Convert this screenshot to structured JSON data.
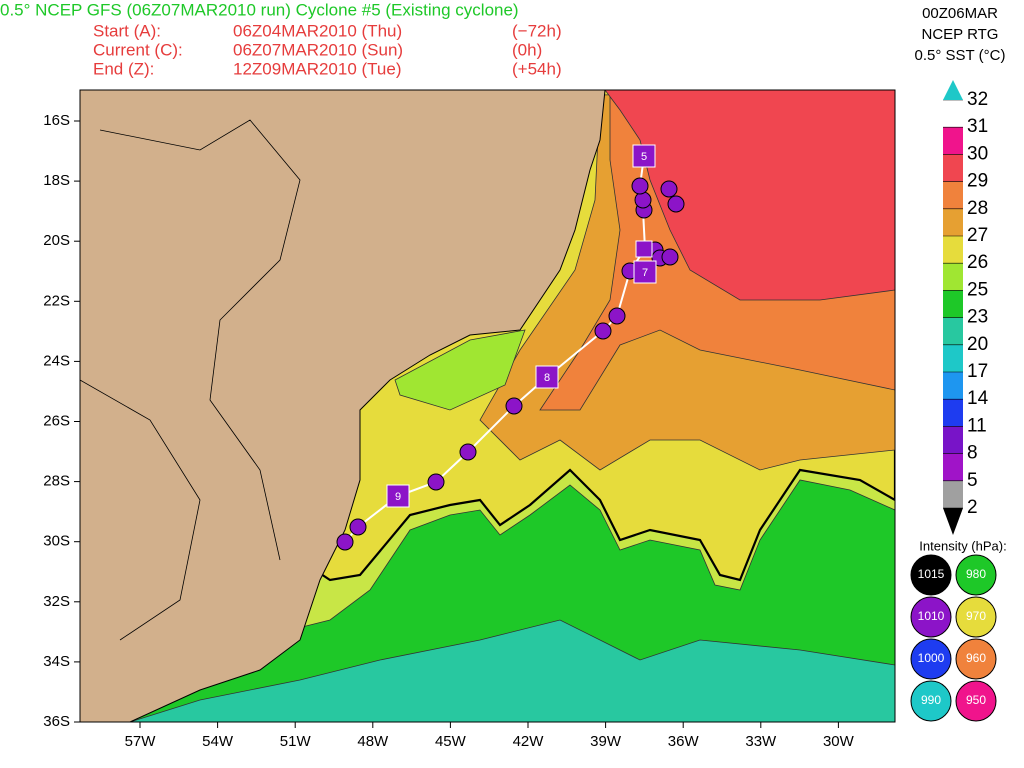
{
  "header": {
    "title": "0.5° NCEP GFS (06Z07MAR2010 run) Cyclone #5 (Existing cyclone)",
    "rows": [
      [
        "Start (A):",
        "06Z04MAR2010 (Thu)",
        "(−72h)"
      ],
      [
        "Current (C):",
        "06Z07MAR2010 (Sun)",
        "(0h)"
      ],
      [
        "End (Z):",
        "12Z09MAR2010 (Tue)",
        "(+54h)"
      ]
    ]
  },
  "colorbar": {
    "title": [
      "00Z06MAR",
      "NCEP RTG",
      "0.5° SST (°C)"
    ],
    "values": [
      32,
      31,
      30,
      29,
      28,
      27,
      26,
      25,
      23,
      20,
      17,
      14,
      11,
      8,
      5,
      2
    ],
    "band_colors": [
      "#ffffff",
      "#f0148c",
      "#f04650",
      "#f0823c",
      "#e6a032",
      "#e6dc3c",
      "#a0e632",
      "#1ec828",
      "#28c8a0",
      "#1ec8c8",
      "#1e96f0",
      "#1e3cf0",
      "#7814c8",
      "#a014c8",
      "#a0a0a0"
    ]
  },
  "map": {
    "lat_labels": [
      "16S",
      "18S",
      "20S",
      "22S",
      "24S",
      "26S",
      "28S",
      "30S",
      "32S",
      "34S",
      "36S"
    ],
    "lon_labels": [
      "57W",
      "54W",
      "51W",
      "48W",
      "45W",
      "42W",
      "39W",
      "36W",
      "33W",
      "30W"
    ],
    "day_markers": [
      "5",
      "7",
      "8",
      "9"
    ]
  },
  "intensity": {
    "title": "Intensity (hPa):",
    "items": [
      {
        "label": "1015",
        "color": "#000000"
      },
      {
        "label": "980",
        "color": "#1ec828"
      },
      {
        "label": "1010",
        "color": "#8c14c8"
      },
      {
        "label": "970",
        "color": "#e6dc3c"
      },
      {
        "label": "1000",
        "color": "#1e3cf0"
      },
      {
        "label": "960",
        "color": "#f0823c"
      },
      {
        "label": "990",
        "color": "#1ec8c8"
      },
      {
        "label": "950",
        "color": "#f0148c"
      }
    ]
  }
}
